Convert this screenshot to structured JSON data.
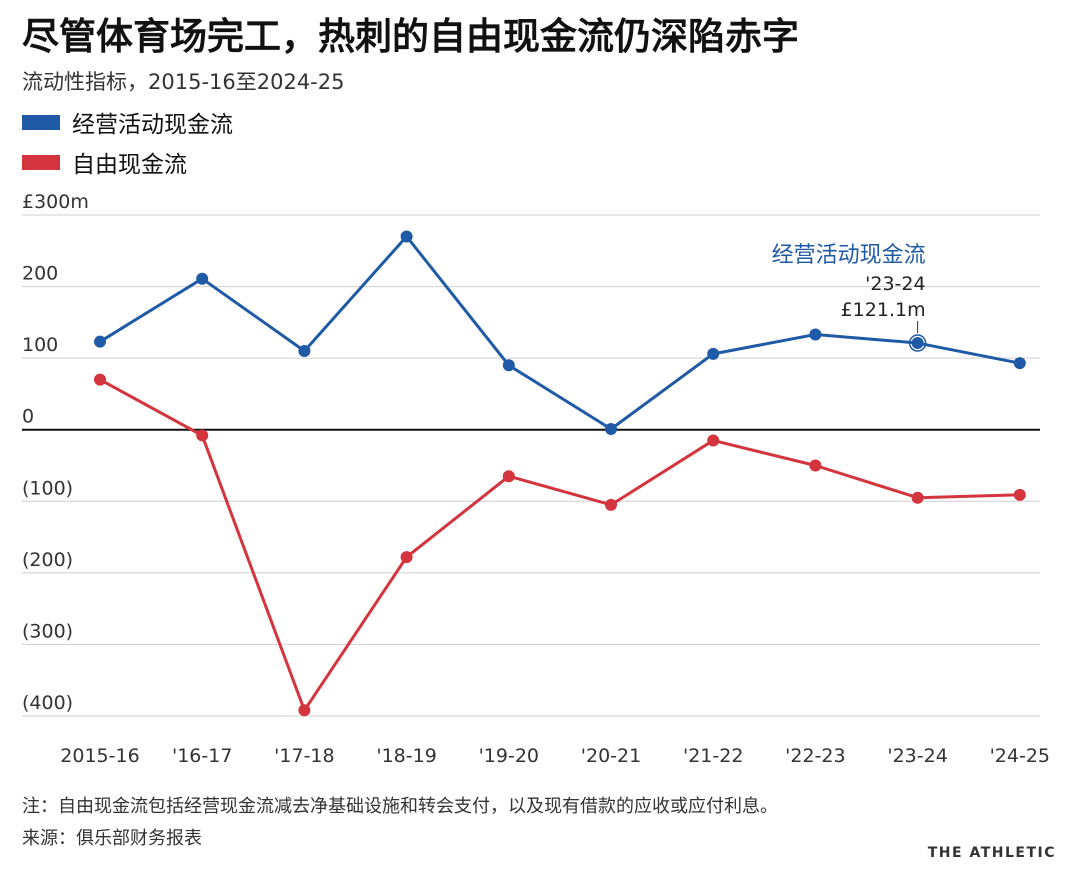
{
  "header": {
    "title": "尽管体育场完工，热刺的自由现金流仍深陷赤字",
    "subtitle": "流动性指标，2015-16至2024-25"
  },
  "legend": [
    {
      "label": "经营活动现金流",
      "color": "#1f5aa6"
    },
    {
      "label": "自由现金流",
      "color": "#d3343d"
    }
  ],
  "chart_data": {
    "type": "line",
    "title": "尽管体育场完工，热刺的自由现金流仍深陷赤字",
    "subtitle": "流动性指标，2015-16至2024-25",
    "categories": [
      "2015-16",
      "'16-17",
      "'17-18",
      "'18-19",
      "'19-20",
      "'20-21",
      "'21-22",
      "'22-23",
      "'23-24",
      "'24-25"
    ],
    "series": [
      {
        "name": "经营活动现金流",
        "color": "#1f5aa6",
        "values": [
          123,
          211,
          110,
          270,
          90,
          1,
          106,
          133,
          121.1,
          93
        ]
      },
      {
        "name": "自由现金流",
        "color": "#d3343d",
        "values": [
          70,
          -8,
          -392,
          -178,
          -65,
          -105,
          -15,
          -50,
          -95,
          -91
        ]
      }
    ],
    "ylim": [
      -400,
      300
    ],
    "yticks": [
      300,
      200,
      100,
      0,
      -100,
      -200,
      -300,
      -400
    ],
    "ytick_labels": [
      "£300m",
      "200",
      "100",
      "0",
      "(100)",
      "(200)",
      "(300)",
      "(400)"
    ],
    "grid": true,
    "annotation": {
      "series_label": "经营活动现金流",
      "category": "'23-24",
      "value_label": "£121.1m"
    }
  },
  "footer": {
    "note": "注：自由现金流包括经营现金流减去净基础设施和转会支付，以及现有借款的应收或应付利息。",
    "source": "来源：俱乐部财务报表",
    "brand": "THE ATHLETIC"
  }
}
